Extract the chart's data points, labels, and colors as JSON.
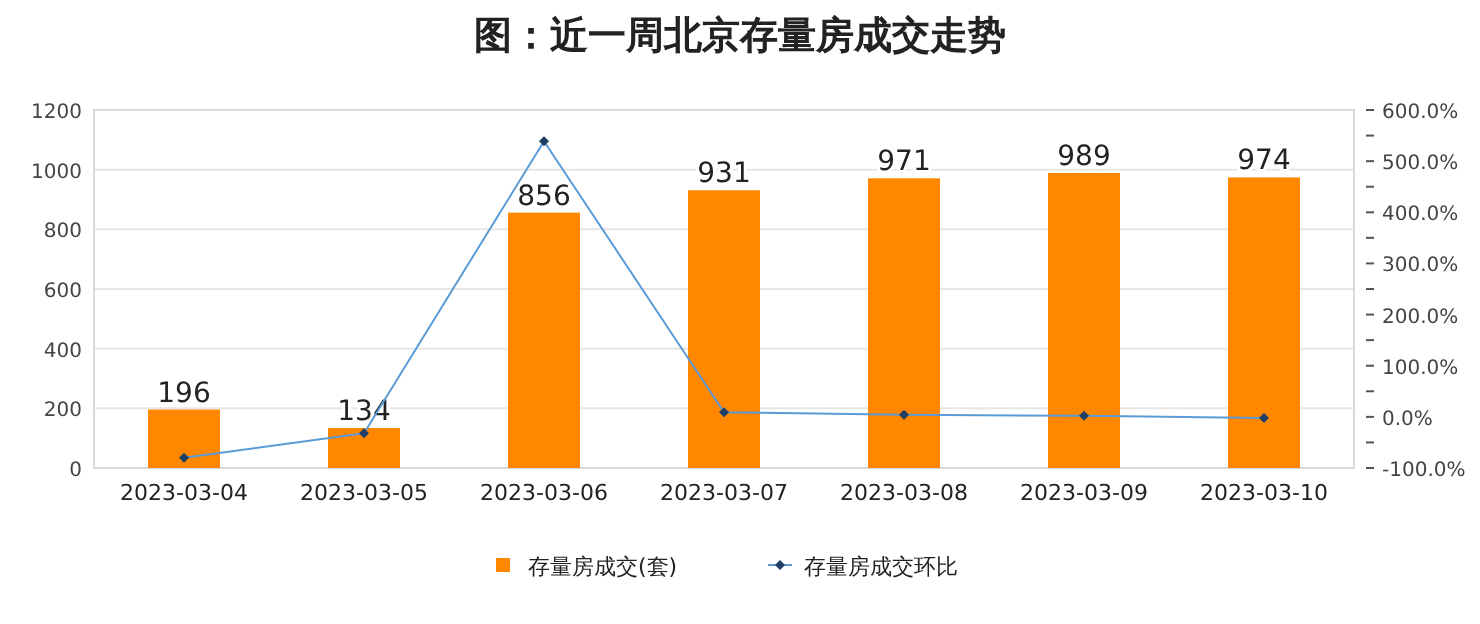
{
  "chart_data": {
    "type": "bar",
    "title": "图：近一周北京存量房成交走势",
    "categories": [
      "2023-03-04",
      "2023-03-05",
      "2023-03-06",
      "2023-03-07",
      "2023-03-08",
      "2023-03-09",
      "2023-03-10"
    ],
    "series": [
      {
        "name": "存量房成交(套)",
        "color": "#ff8800",
        "values": [
          196,
          134,
          856,
          931,
          971,
          989,
          974
        ],
        "value_labels": [
          "196",
          "134",
          "856",
          "931",
          "971",
          "989",
          "974"
        ]
      },
      {
        "name": "存量房成交环比",
        "type": "line",
        "axis": "y2",
        "color": "#5b9bd5",
        "marker": "diamond",
        "values": [
          -80,
          -32,
          539,
          9,
          4,
          2,
          -2
        ]
      }
    ],
    "ylim": [
      0,
      1200
    ],
    "yticks": [
      0,
      200,
      400,
      600,
      800,
      1000,
      1200
    ],
    "y2lim": [
      -100,
      600
    ],
    "y2ticks": [
      {
        "value": -100,
        "label": "-100.0%"
      },
      {
        "value": -50,
        "label": null
      },
      {
        "value": 0,
        "label": "0.0%"
      },
      {
        "value": 50,
        "label": null
      },
      {
        "value": 100,
        "label": "100.0%"
      },
      {
        "value": 150,
        "label": null
      },
      {
        "value": 200,
        "label": "200.0%"
      },
      {
        "value": 250,
        "label": null
      },
      {
        "value": 300,
        "label": "300.0%"
      },
      {
        "value": 350,
        "label": null
      },
      {
        "value": 400,
        "label": "400.0%"
      },
      {
        "value": 450,
        "label": null
      },
      {
        "value": 500,
        "label": "500.0%"
      },
      {
        "value": 550,
        "label": null
      },
      {
        "value": 600,
        "label": "600.0%"
      }
    ],
    "grid": "y",
    "legend": "bottom"
  }
}
